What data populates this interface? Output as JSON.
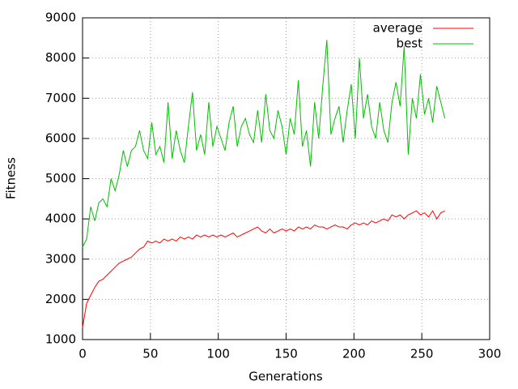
{
  "chart_data": {
    "type": "line",
    "xlabel": "Generations",
    "ylabel": "Fitness",
    "x": [
      0,
      3,
      6,
      9,
      12,
      15,
      18,
      21,
      24,
      27,
      30,
      33,
      36,
      39,
      42,
      45,
      48,
      51,
      54,
      57,
      60,
      63,
      66,
      69,
      72,
      75,
      78,
      81,
      84,
      87,
      90,
      93,
      96,
      99,
      102,
      105,
      108,
      111,
      114,
      117,
      120,
      123,
      126,
      129,
      132,
      135,
      138,
      141,
      144,
      147,
      150,
      153,
      156,
      159,
      162,
      165,
      168,
      171,
      174,
      177,
      180,
      183,
      186,
      189,
      192,
      195,
      198,
      201,
      204,
      207,
      210,
      213,
      216,
      219,
      222,
      225,
      228,
      231,
      234,
      237,
      240,
      243,
      246,
      249,
      252,
      255,
      258,
      261,
      264,
      267
    ],
    "series": [
      {
        "name": "average",
        "color": "#ff0000",
        "values": [
          1300,
          1900,
          2100,
          2300,
          2450,
          2500,
          2600,
          2700,
          2800,
          2900,
          2950,
          3000,
          3050,
          3150,
          3250,
          3300,
          3450,
          3400,
          3450,
          3400,
          3500,
          3450,
          3500,
          3450,
          3550,
          3500,
          3550,
          3500,
          3600,
          3550,
          3600,
          3550,
          3600,
          3550,
          3600,
          3550,
          3600,
          3650,
          3550,
          3600,
          3650,
          3700,
          3750,
          3800,
          3700,
          3650,
          3750,
          3650,
          3700,
          3750,
          3700,
          3750,
          3700,
          3800,
          3750,
          3800,
          3750,
          3850,
          3800,
          3800,
          3750,
          3800,
          3850,
          3800,
          3800,
          3750,
          3850,
          3900,
          3850,
          3900,
          3850,
          3950,
          3900,
          3950,
          4000,
          3950,
          4100,
          4050,
          4100,
          4000,
          4100,
          4150,
          4200,
          4100,
          4150,
          4050,
          4200,
          4000,
          4150,
          4200
        ]
      },
      {
        "name": "best",
        "color": "#00c000",
        "values": [
          3300,
          3500,
          4300,
          3950,
          4400,
          4500,
          4300,
          5000,
          4700,
          5100,
          5700,
          5300,
          5700,
          5800,
          6200,
          5700,
          5500,
          6400,
          5600,
          5800,
          5400,
          6900,
          5500,
          6200,
          5700,
          5400,
          6300,
          7150,
          5700,
          6100,
          5600,
          6900,
          5800,
          6300,
          6000,
          5700,
          6400,
          6800,
          5800,
          6300,
          6500,
          6100,
          5900,
          6700,
          5900,
          7100,
          6200,
          6000,
          6700,
          6300,
          5600,
          6500,
          6100,
          7450,
          5800,
          6200,
          5300,
          6900,
          6000,
          7300,
          8450,
          6100,
          6500,
          6800,
          5900,
          6700,
          7350,
          6000,
          8000,
          6500,
          7100,
          6300,
          6000,
          6900,
          6200,
          5900,
          6900,
          7400,
          6800,
          8300,
          5600,
          7000,
          6500,
          7600,
          6600,
          7000,
          6400,
          7300,
          6900,
          6500
        ]
      }
    ],
    "xlim": [
      0,
      300
    ],
    "xticks": [
      0,
      50,
      100,
      150,
      200,
      250,
      300
    ],
    "ylim": [
      1000,
      9000
    ],
    "yticks": [
      1000,
      2000,
      3000,
      4000,
      5000,
      6000,
      7000,
      8000,
      9000
    ],
    "grid": true,
    "legend": "upper right"
  }
}
